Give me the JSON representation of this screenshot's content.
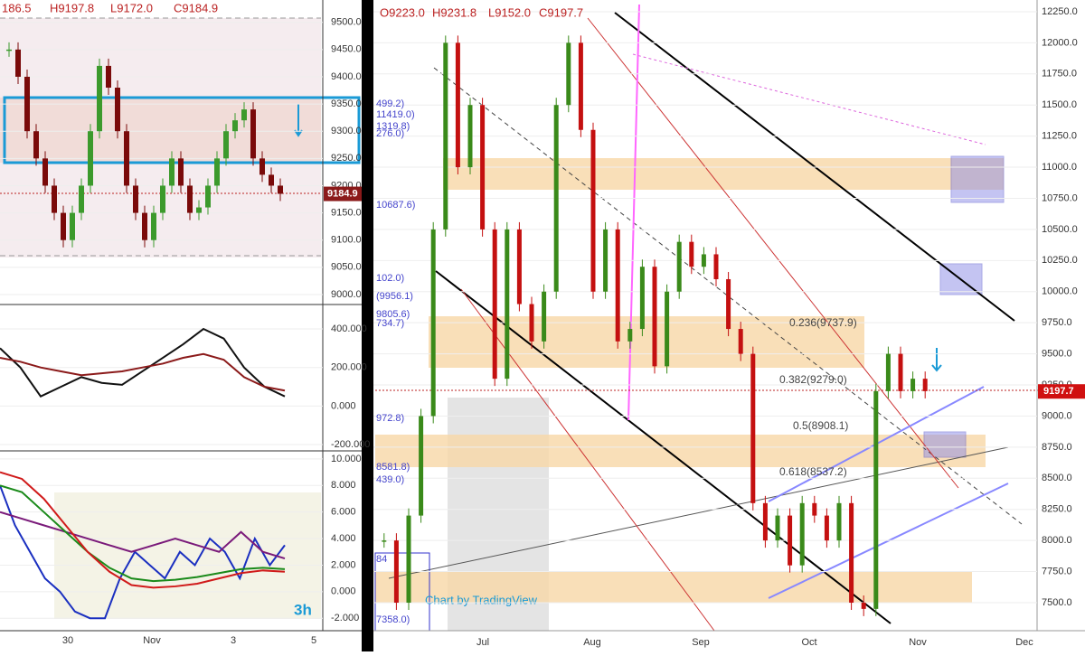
{
  "left_chart": {
    "header": [
      "186.5",
      "H9197.8",
      "L9172.0",
      "C9184.9"
    ],
    "x_labels": [
      "30",
      "Nov",
      "3",
      "5"
    ],
    "price": {
      "ylim": [
        8985,
        9541
      ],
      "yticks": [
        {
          "value": 9000,
          "label": "9000.0"
        },
        {
          "value": 9050,
          "label": "9050.0"
        },
        {
          "value": 9100,
          "label": "9100.0"
        },
        {
          "value": 9150,
          "label": "9150.0"
        },
        {
          "value": 9200,
          "label": "9200.0"
        },
        {
          "value": 9250,
          "label": "9250.0"
        },
        {
          "value": 9300,
          "label": "9300.0"
        },
        {
          "value": 9350,
          "label": "9350.0"
        },
        {
          "value": 9400,
          "label": "9400.0"
        },
        {
          "value": 9450,
          "label": "9450.0"
        },
        {
          "value": 9500,
          "label": "9500.0"
        }
      ],
      "last": 9184.9,
      "values": [
        9450,
        9400,
        9300,
        9250,
        9200,
        9150,
        9100,
        9150,
        9200,
        9300,
        9420,
        9380,
        9300,
        9200,
        9150,
        9100,
        9150,
        9200,
        9250,
        9200,
        9150,
        9160,
        9200,
        9250,
        9300,
        9320,
        9340,
        9250,
        9220,
        9200,
        9185
      ]
    },
    "oscillator": {
      "ylim": [
        -228,
        522
      ],
      "yticks": [
        {
          "value": -200,
          "label": "-200.000"
        },
        {
          "value": 0,
          "label": "0.000"
        },
        {
          "value": 200,
          "label": "200.000"
        },
        {
          "value": 400,
          "label": "400.000"
        }
      ],
      "series": [
        {
          "color": "#111111",
          "values": [
            300,
            200,
            50,
            100,
            150,
            120,
            110,
            180,
            250,
            320,
            400,
            350,
            200,
            100,
            50
          ]
        },
        {
          "color": "#8b1a1a",
          "values": [
            250,
            230,
            200,
            180,
            160,
            170,
            180,
            200,
            220,
            250,
            270,
            240,
            150,
            100,
            80
          ]
        }
      ]
    },
    "momentum": {
      "ylim": [
        -2.94,
        10.54
      ],
      "yticks": [
        {
          "value": -2,
          "label": "-2.000"
        },
        {
          "value": 0,
          "label": "0.000"
        },
        {
          "value": 2,
          "label": "2.000"
        },
        {
          "value": 4,
          "label": "4.000"
        },
        {
          "value": 6,
          "label": "6.000"
        },
        {
          "value": 8,
          "label": "8.000"
        },
        {
          "value": 10,
          "label": "10.000"
        }
      ],
      "badge": "3h",
      "series": [
        {
          "color": "#1a2fc0",
          "values": [
            8,
            5,
            3,
            1,
            0,
            -1.5,
            -2,
            -2,
            1,
            3,
            2,
            1,
            3,
            2,
            4,
            3,
            1,
            4,
            2,
            3.5
          ]
        },
        {
          "color": "#7a1a7a",
          "values": [
            6,
            5.5,
            5,
            4.5,
            4,
            3.5,
            3,
            3.5,
            4,
            3.5,
            3,
            4.5,
            3,
            2.5
          ]
        },
        {
          "color": "#1a8a1a",
          "values": [
            8,
            7.5,
            6,
            4.5,
            3,
            1.8,
            1,
            0.8,
            0.9,
            1.1,
            1.4,
            1.7,
            1.8,
            1.7
          ]
        },
        {
          "color": "#d01a1a",
          "values": [
            9,
            8.5,
            7,
            5,
            3,
            1.5,
            0.5,
            0.3,
            0.4,
            0.6,
            1,
            1.4,
            1.6,
            1.5
          ]
        }
      ]
    }
  },
  "main_chart": {
    "header": [
      "O9223.0",
      "H9231.8",
      "L9152.0",
      "C9197.7"
    ],
    "x_labels": [
      "Jul",
      "Aug",
      "Sep",
      "Oct",
      "Nov",
      "Dec"
    ],
    "ylim": [
      7282,
      12344
    ],
    "yticks": [
      {
        "value": 7500,
        "label": "7500.0"
      },
      {
        "value": 7750,
        "label": "7750.0"
      },
      {
        "value": 8000,
        "label": "8000.0"
      },
      {
        "value": 8250,
        "label": "8250.0"
      },
      {
        "value": 8500,
        "label": "8500.0"
      },
      {
        "value": 8750,
        "label": "8750.0"
      },
      {
        "value": 9000,
        "label": "9000.0"
      },
      {
        "value": 9250,
        "label": "9250.0"
      },
      {
        "value": 9500,
        "label": "9500.0"
      },
      {
        "value": 9750,
        "label": "9750.0"
      },
      {
        "value": 10000,
        "label": "10000.0"
      },
      {
        "value": 10250,
        "label": "10250.0"
      },
      {
        "value": 10500,
        "label": "10500.0"
      },
      {
        "value": 10750,
        "label": "10750.0"
      },
      {
        "value": 11000,
        "label": "11000.0"
      },
      {
        "value": 11250,
        "label": "11250.0"
      },
      {
        "value": 11500,
        "label": "11500.0"
      },
      {
        "value": 11750,
        "label": "11750.0"
      },
      {
        "value": 12000,
        "label": "12000.0"
      },
      {
        "value": 12250,
        "label": "12250.0"
      }
    ],
    "last": 9197.7,
    "values": [
      8000,
      7500,
      8200,
      9000,
      10500,
      12000,
      11000,
      11500,
      10500,
      9300,
      10500,
      9900,
      9600,
      10000,
      11500,
      12000,
      11300,
      10000,
      10500,
      9600,
      9700,
      10200,
      9400,
      10000,
      10400,
      10200,
      10300,
      10100,
      9700,
      9500,
      8300,
      8000,
      8200,
      7800,
      8300,
      8200,
      8000,
      8300,
      7500,
      7450,
      9200,
      9500,
      9200,
      9300,
      9200
    ],
    "fib_labels": [
      "0.236(9737.9)",
      "0.382(9279.0)",
      "0.5(8908.1)",
      "0.618(8537.2)"
    ],
    "side_labels": [
      "499.2)",
      "11419.0)",
      "1319.8)",
      "276.0)",
      "10687.6)",
      "102.0)",
      "(9956.1)",
      "9805.6)",
      "734.7)",
      "972.8)",
      "8581.8)",
      "439.0)",
      "84",
      "7358.0)"
    ],
    "watermark": "Chart by TradingView"
  }
}
